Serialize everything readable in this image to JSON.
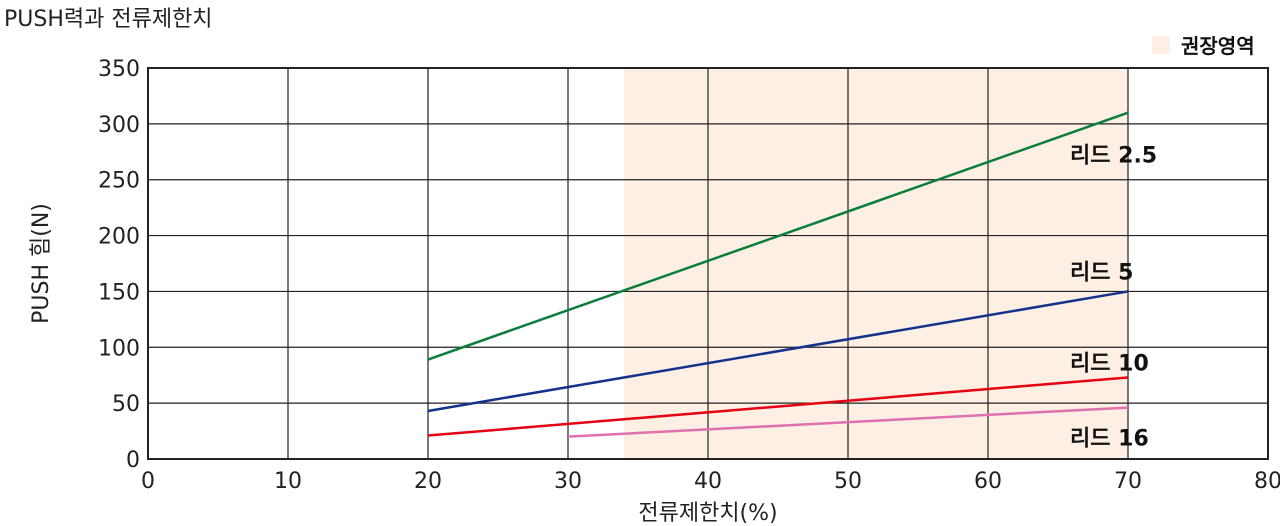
{
  "chart_data": {
    "type": "line",
    "title": "PUSH력과 전류제한치",
    "xlabel": "전류제한치(%)",
    "ylabel": "PUSH 힘(N)",
    "xlim": [
      0,
      80
    ],
    "ylim": [
      0,
      350
    ],
    "xticks": [
      0,
      10,
      20,
      30,
      40,
      50,
      60,
      70,
      80
    ],
    "yticks": [
      0,
      50,
      100,
      150,
      200,
      250,
      300,
      350
    ],
    "grid": true,
    "legend": {
      "position": "top-right",
      "label": "권장영역",
      "color": "#fdefe3"
    },
    "recommended_range": {
      "x_start": 34,
      "x_end": 70
    },
    "series": [
      {
        "name": "리드 2.5",
        "color": "#0b7d3e",
        "x": [
          20,
          70
        ],
        "y": [
          89,
          310
        ]
      },
      {
        "name": "리드 5",
        "color": "#14328c",
        "x": [
          20,
          70
        ],
        "y": [
          43,
          150
        ]
      },
      {
        "name": "리드 10",
        "color": "#e60012",
        "x": [
          20,
          70
        ],
        "y": [
          21,
          73
        ]
      },
      {
        "name": "리드 16",
        "color": "#e070b0",
        "x": [
          30,
          70
        ],
        "y": [
          20,
          46
        ]
      }
    ]
  }
}
